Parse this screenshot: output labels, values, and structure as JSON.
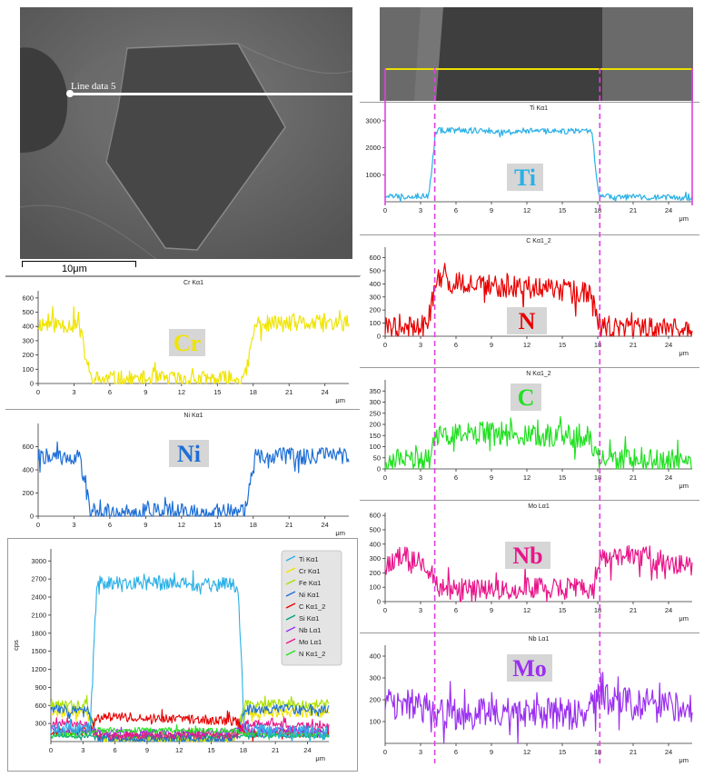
{
  "sem": {
    "line_label": "Line data 5",
    "scale_bar_label": "10μm"
  },
  "colors": {
    "Ti": "#29b0e6",
    "Cr": "#f0e400",
    "Ni": "#1e6fd6",
    "N": "#e80000",
    "C": "#22e022",
    "Nb": "#e8158a",
    "Mo": "#9b2ff0",
    "Fe": "#a8e000",
    "Si": "#00a080",
    "scan_line_yellow": "#e8e000",
    "marker_magenta": "#e040e0"
  },
  "chart_data": [
    {
      "type": "line",
      "title": "Cr Kα1",
      "badge": "Cr",
      "badge_color": "#f0e400",
      "x_unit": "μm",
      "xlim": [
        0,
        26
      ],
      "xticks": [
        0,
        3,
        6,
        9,
        12,
        15,
        18,
        21,
        24
      ],
      "ylim": [
        0,
        650
      ],
      "yticks": [
        0,
        100,
        200,
        300,
        400,
        500,
        600
      ],
      "series": [
        {
          "color": "#f0e400",
          "profile": [
            [
              0,
              420
            ],
            [
              3.4,
              410
            ],
            [
              4.4,
              30
            ],
            [
              17.3,
              30
            ],
            [
              18.2,
              420
            ],
            [
              26,
              420
            ]
          ],
          "noise": 120,
          "seed": 11
        }
      ]
    },
    {
      "type": "line",
      "title": "Ni Kα1",
      "badge": "Ni",
      "badge_color": "#1e6fd6",
      "x_unit": "μm",
      "xlim": [
        0,
        26
      ],
      "xticks": [
        0,
        3,
        6,
        9,
        12,
        15,
        18,
        21,
        24
      ],
      "ylim": [
        0,
        800
      ],
      "yticks": [
        0,
        200,
        400,
        600
      ],
      "series": [
        {
          "color": "#1e6fd6",
          "profile": [
            [
              0,
              520
            ],
            [
              3.4,
              510
            ],
            [
              4.4,
              40
            ],
            [
              17.3,
              40
            ],
            [
              18.2,
              520
            ],
            [
              26,
              520
            ]
          ],
          "noise": 140,
          "seed": 22
        }
      ]
    },
    {
      "type": "line",
      "title": "Ti Kα1",
      "badge": "Ti",
      "badge_color": "#29b0e6",
      "x_unit": "μm",
      "xlim": [
        0,
        26
      ],
      "xticks": [
        0,
        3,
        6,
        9,
        12,
        15,
        18,
        21,
        24
      ],
      "ylim": [
        0,
        3300
      ],
      "yticks": [
        1000,
        2000,
        3000
      ],
      "series": [
        {
          "color": "#29b0e6",
          "profile": [
            [
              0,
              200
            ],
            [
              3.7,
              220
            ],
            [
              4.3,
              2650
            ],
            [
              17.5,
              2600
            ],
            [
              18.1,
              180
            ],
            [
              26,
              150
            ]
          ],
          "noise": 220,
          "seed": 33
        }
      ]
    },
    {
      "type": "line",
      "title": "C Kα1_2",
      "badge": "N",
      "badge_color": "#e80000",
      "x_unit": "μm",
      "xlim": [
        0,
        26
      ],
      "xticks": [
        0,
        3,
        6,
        9,
        12,
        15,
        18,
        21,
        24
      ],
      "ylim": [
        0,
        680
      ],
      "yticks": [
        0,
        100,
        200,
        300,
        400,
        500,
        600
      ],
      "series": [
        {
          "color": "#e80000",
          "profile": [
            [
              0,
              60
            ],
            [
              3.5,
              80
            ],
            [
              4.4,
              420
            ],
            [
              17.3,
              330
            ],
            [
              18.2,
              60
            ],
            [
              26,
              50
            ]
          ],
          "noise": 180,
          "seed": 44
        }
      ]
    },
    {
      "type": "line",
      "title": "N Kα1_2",
      "badge": "C",
      "badge_color": "#22e022",
      "x_unit": "μm",
      "xlim": [
        0,
        26
      ],
      "xticks": [
        0,
        3,
        6,
        9,
        12,
        15,
        18,
        21,
        24
      ],
      "ylim": [
        0,
        400
      ],
      "yticks": [
        0,
        50,
        100,
        150,
        200,
        250,
        300,
        350
      ],
      "series": [
        {
          "color": "#22e022",
          "profile": [
            [
              0,
              30
            ],
            [
              3.5,
              45
            ],
            [
              4.4,
              160
            ],
            [
              17.3,
              150
            ],
            [
              18.2,
              40
            ],
            [
              26,
              35
            ]
          ],
          "noise": 110,
          "seed": 55
        }
      ]
    },
    {
      "type": "line",
      "title": "Mo Lα1",
      "badge": "Nb",
      "badge_color": "#e8158a",
      "x_unit": "μm",
      "xlim": [
        0,
        26
      ],
      "xticks": [
        0,
        3,
        6,
        9,
        12,
        15,
        18,
        21,
        24
      ],
      "ylim": [
        0,
        620
      ],
      "yticks": [
        0,
        100,
        200,
        300,
        400,
        500,
        600
      ],
      "series": [
        {
          "color": "#e8158a",
          "profile": [
            [
              0,
              260
            ],
            [
              1.5,
              320
            ],
            [
              3.5,
              250
            ],
            [
              4.5,
              90
            ],
            [
              17.5,
              90
            ],
            [
              18.2,
              300
            ],
            [
              21,
              330
            ],
            [
              26,
              230
            ]
          ],
          "noise": 150,
          "seed": 66
        }
      ]
    },
    {
      "type": "line",
      "title": "Nb Lα1",
      "badge": "Mo",
      "badge_color": "#9b2ff0",
      "x_unit": "μm",
      "xlim": [
        0,
        26
      ],
      "xticks": [
        0,
        3,
        6,
        9,
        12,
        15,
        18,
        21,
        24
      ],
      "ylim": [
        0,
        450
      ],
      "yticks": [
        100,
        200,
        300,
        400
      ],
      "series": [
        {
          "color": "#9b2ff0",
          "profile": [
            [
              0,
              190
            ],
            [
              3,
              170
            ],
            [
              4.5,
              130
            ],
            [
              17,
              140
            ],
            [
              18,
              200
            ],
            [
              26,
              150
            ]
          ],
          "noise": 150,
          "seed": 77
        }
      ]
    },
    {
      "type": "line",
      "title": "",
      "ylabel": "cps",
      "x_unit": "μm",
      "xlim": [
        0,
        26
      ],
      "xticks": [
        0,
        3,
        6,
        9,
        12,
        15,
        18,
        21,
        24
      ],
      "ylim": [
        0,
        3200
      ],
      "yticks": [
        300,
        600,
        900,
        1200,
        1500,
        1800,
        2100,
        2400,
        2700,
        3000
      ],
      "legend": [
        "Ti Kα1",
        "Cr Kα1",
        "Fe Kα1",
        "Ni Kα1",
        "C Kα1_2",
        "Si Kα1",
        "Nb Lα1",
        "Mo Lα1",
        "N Kα1_2"
      ],
      "series": [
        {
          "name": "Cr Kα1",
          "color": "#f0e400",
          "profile": [
            [
              0,
              480
            ],
            [
              3.4,
              470
            ],
            [
              4.4,
              40
            ],
            [
              17.3,
              40
            ],
            [
              18.2,
              480
            ],
            [
              26,
              480
            ]
          ],
          "noise": 160,
          "seed": 81
        },
        {
          "name": "Fe Kα1",
          "color": "#a8e000",
          "profile": [
            [
              0,
              620
            ],
            [
              3.4,
              610
            ],
            [
              4.4,
              60
            ],
            [
              17.3,
              60
            ],
            [
              18.2,
              620
            ],
            [
              26,
              620
            ]
          ],
          "noise": 170,
          "seed": 82
        },
        {
          "name": "Ni Kα1",
          "color": "#1e6fd6",
          "profile": [
            [
              0,
              540
            ],
            [
              3.4,
              530
            ],
            [
              4.4,
              40
            ],
            [
              17.3,
              40
            ],
            [
              18.2,
              540
            ],
            [
              26,
              540
            ]
          ],
          "noise": 150,
          "seed": 83
        },
        {
          "name": "C Kα1_2",
          "color": "#e80000",
          "profile": [
            [
              0,
              150
            ],
            [
              3.5,
              170
            ],
            [
              4.4,
              420
            ],
            [
              17.3,
              340
            ],
            [
              18.2,
              150
            ],
            [
              26,
              140
            ]
          ],
          "noise": 150,
          "seed": 84
        },
        {
          "name": "Si Kα1",
          "color": "#00a080",
          "profile": [
            [
              0,
              90
            ],
            [
              26,
              90
            ]
          ],
          "noise": 60,
          "seed": 85
        },
        {
          "name": "Nb Lα1",
          "color": "#9b2ff0",
          "profile": [
            [
              0,
              210
            ],
            [
              3,
              190
            ],
            [
              4.5,
              140
            ],
            [
              17,
              150
            ],
            [
              18,
              210
            ],
            [
              26,
              160
            ]
          ],
          "noise": 120,
          "seed": 86
        },
        {
          "name": "Mo Lα1",
          "color": "#e8158a",
          "profile": [
            [
              0,
              270
            ],
            [
              1.5,
              330
            ],
            [
              3.5,
              260
            ],
            [
              4.5,
              100
            ],
            [
              17.5,
              100
            ],
            [
              18.2,
              310
            ],
            [
              26,
              240
            ]
          ],
          "noise": 130,
          "seed": 87
        },
        {
          "name": "N Kα1_2",
          "color": "#22e022",
          "profile": [
            [
              0,
              120
            ],
            [
              3.5,
              130
            ],
            [
              4.4,
              190
            ],
            [
              17.3,
              180
            ],
            [
              18.2,
              120
            ],
            [
              26,
              110
            ]
          ],
          "noise": 90,
          "seed": 88
        },
        {
          "name": "Ti Kα1",
          "color": "#29b0e6",
          "profile": [
            [
              0,
              200
            ],
            [
              3.7,
              220
            ],
            [
              4.3,
              2650
            ],
            [
              17.5,
              2600
            ],
            [
              18.1,
              180
            ],
            [
              26,
              150
            ]
          ],
          "noise": 240,
          "seed": 89
        }
      ]
    }
  ]
}
